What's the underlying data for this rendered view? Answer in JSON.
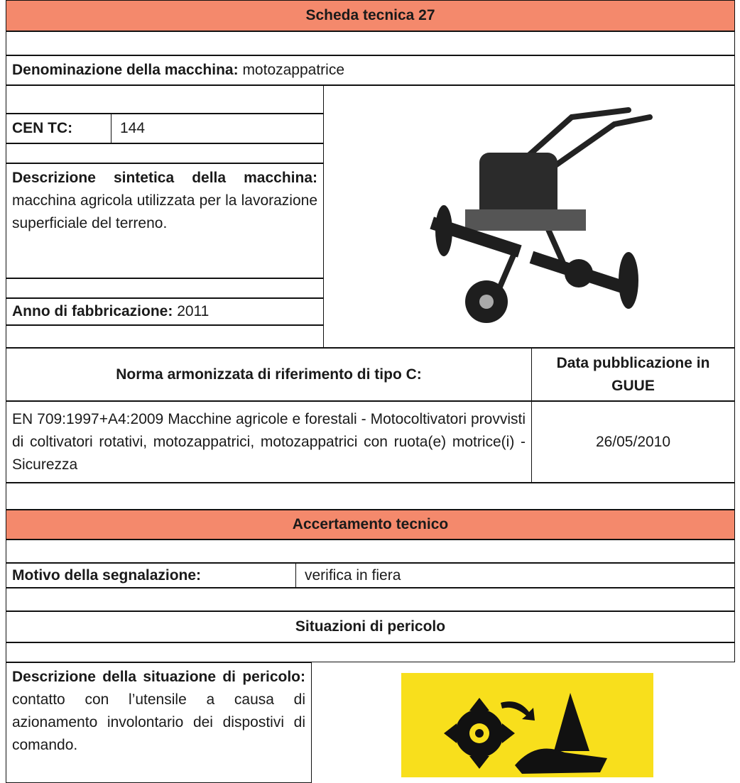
{
  "header": {
    "title": "Scheda tecnica 27"
  },
  "machine": {
    "name_label": "Denominazione della macchina:",
    "name": "motozappatrice",
    "cen_tc_label": "CEN TC:",
    "cen_tc": "144",
    "description_label": "Descrizione sintetica della macchina:",
    "description": "macchina agricola utilizzata per la lavorazione superficiale del terreno.",
    "year_label": "Anno di fabbricazione:",
    "year": "2011"
  },
  "norm": {
    "header": "Norma armonizzata di riferimento di tipo C:",
    "date_header": "Data pubblicazione in GUUE",
    "text": "EN 709:1997+A4:2009 Macchine agricole e forestali - Motocoltivatori provvisti di coltivatori rotativi, motozappatrici, motozappatrici con ruota(e) motrice(i) - Sicurezza",
    "date": "26/05/2010"
  },
  "assessment": {
    "title": "Accertamento tecnico",
    "reason_label": "Motivo della segnalazione:",
    "reason": "verifica in fiera"
  },
  "hazard": {
    "title": "Situazioni di pericolo",
    "description_label": "Descrizione della situazione di pericolo:",
    "description": "contatto con l’utensile a causa di azionamento involontario dei dispostivi di comando."
  }
}
